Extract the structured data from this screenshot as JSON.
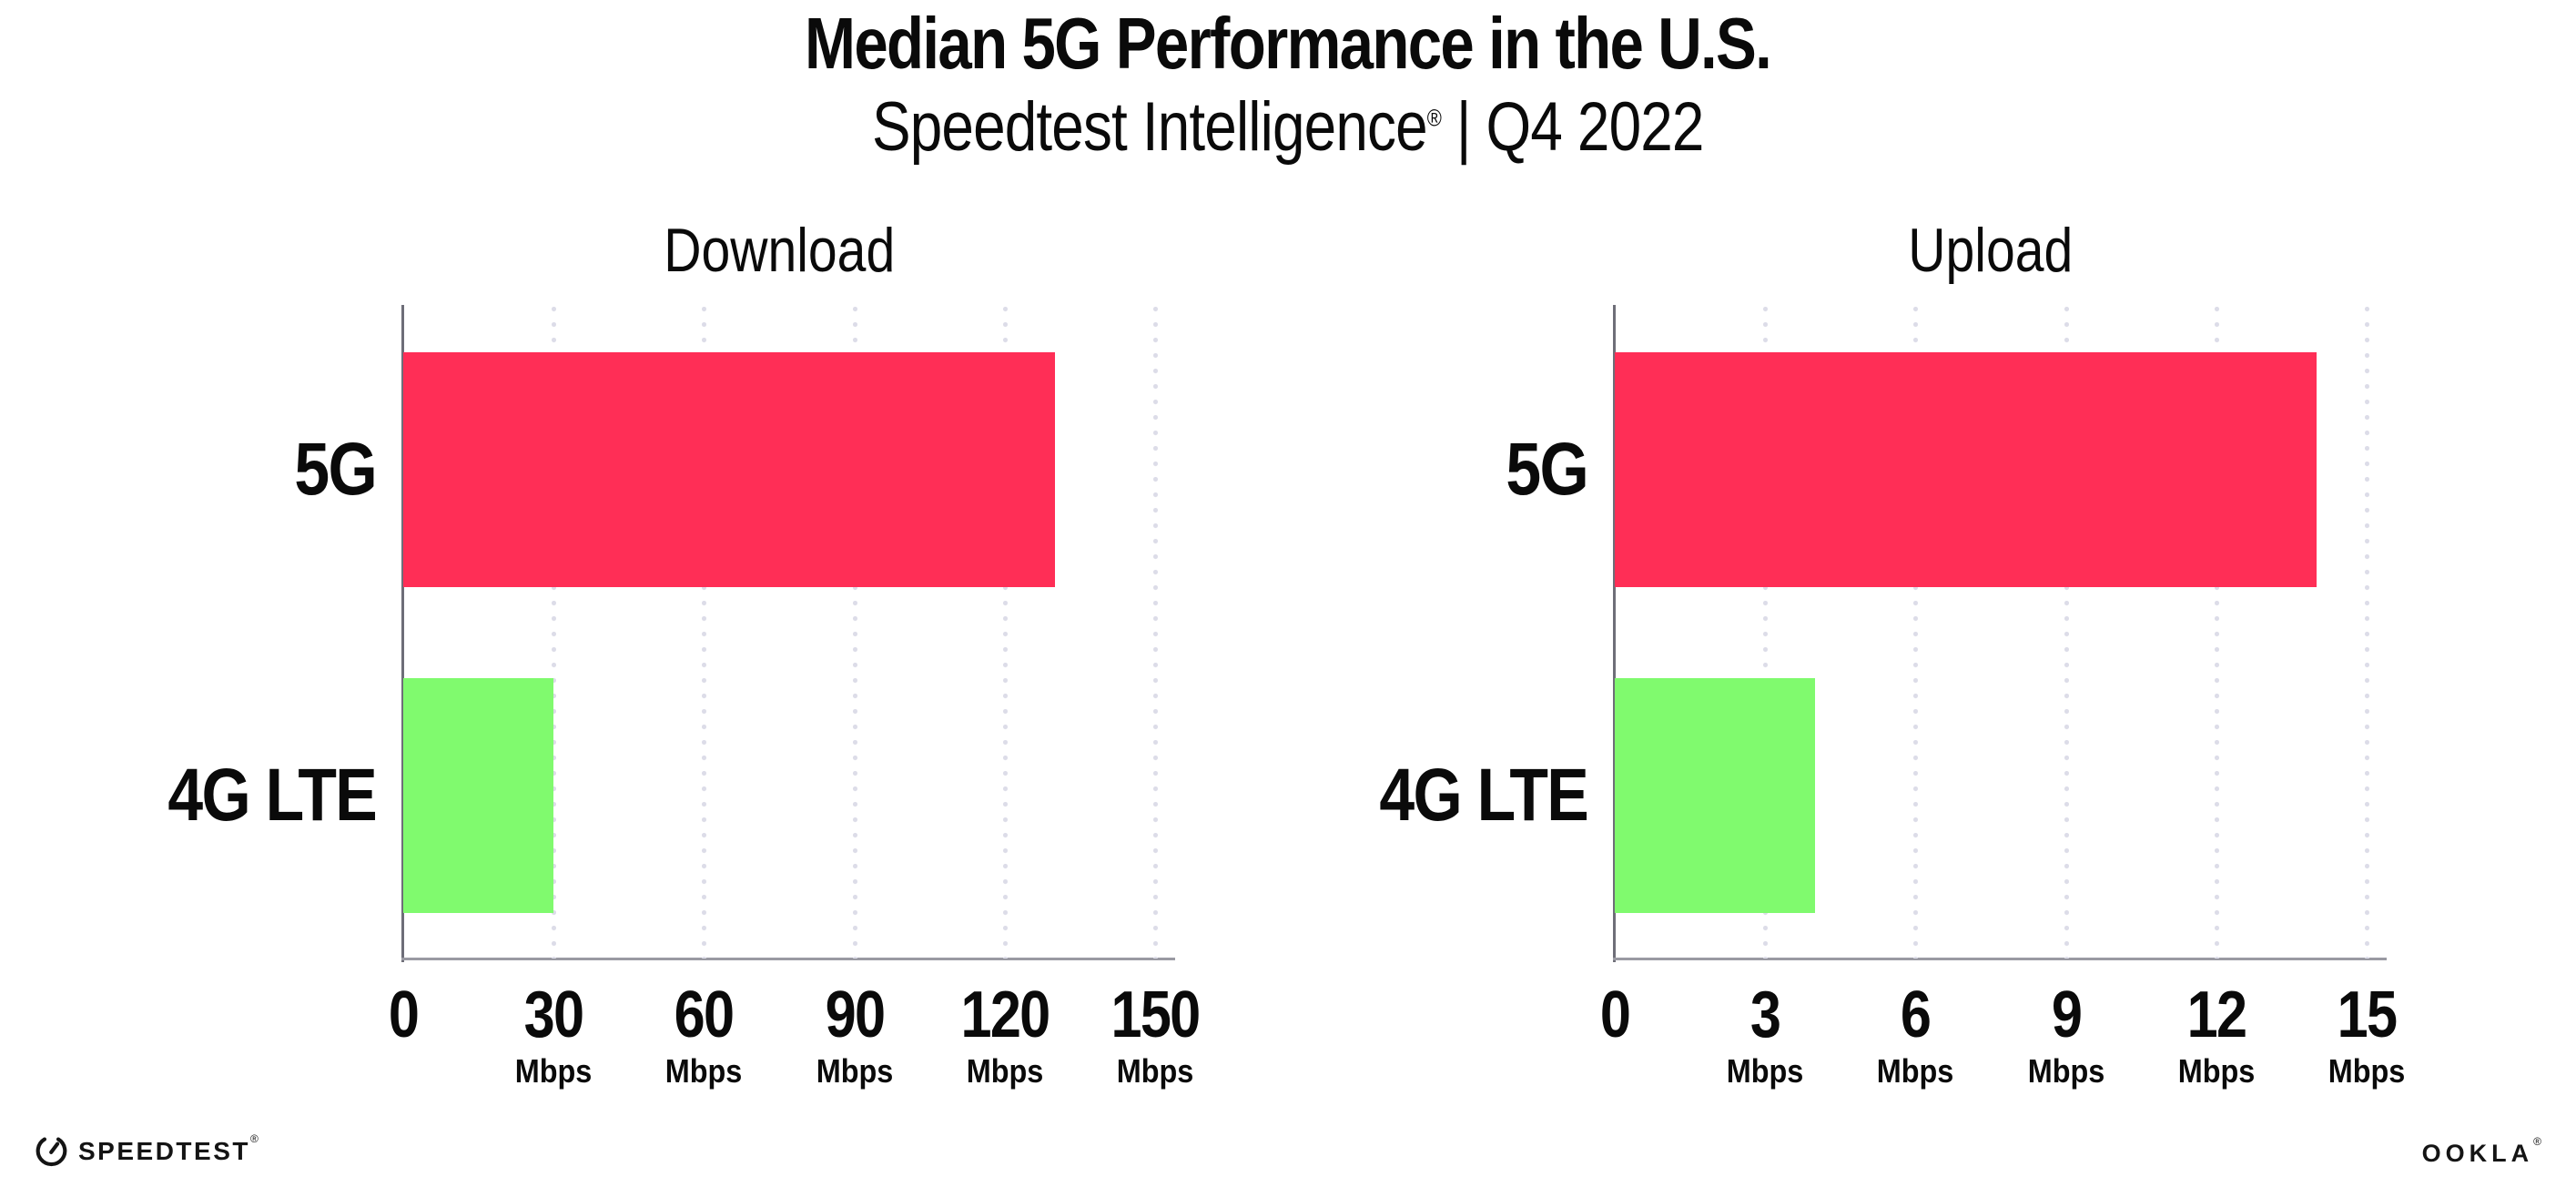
{
  "header": {
    "title": "Median 5G Performance in the U.S.",
    "subtitle_brand": "Speedtest Intelligence",
    "subtitle_reg": "®",
    "subtitle_rest": " | Q4 2022"
  },
  "colors": {
    "bar_5g": "#FF2E56",
    "bar_4g_lte": "#80FA6E",
    "y_axis": "#6e6e78",
    "x_axis": "#9a9aa2",
    "gridline_dots": "#dcdce8",
    "text": "#0a0a0a"
  },
  "chart_data": [
    {
      "type": "bar",
      "orientation": "horizontal",
      "title": "Download",
      "categories": [
        "5G",
        "4G LTE"
      ],
      "values": [
        130,
        30
      ],
      "unit": "Mbps",
      "xlim": [
        0,
        150
      ],
      "xticks": [
        0,
        30,
        60,
        90,
        120,
        150
      ],
      "grid": "dotted-vertical",
      "legend": "none",
      "bar_colors": [
        "#FF2E56",
        "#80FA6E"
      ]
    },
    {
      "type": "bar",
      "orientation": "horizontal",
      "title": "Upload",
      "categories": [
        "5G",
        "4G LTE"
      ],
      "values": [
        14,
        4
      ],
      "unit": "Mbps",
      "xlim": [
        0,
        15
      ],
      "xticks": [
        0,
        3,
        6,
        9,
        12,
        15
      ],
      "grid": "dotted-vertical",
      "legend": "none",
      "bar_colors": [
        "#FF2E56",
        "#80FA6E"
      ]
    }
  ],
  "footer": {
    "speedtest_label": "SPEEDTEST",
    "speedtest_reg": "®",
    "ookla_label": "OOKLA",
    "ookla_reg": "®"
  }
}
